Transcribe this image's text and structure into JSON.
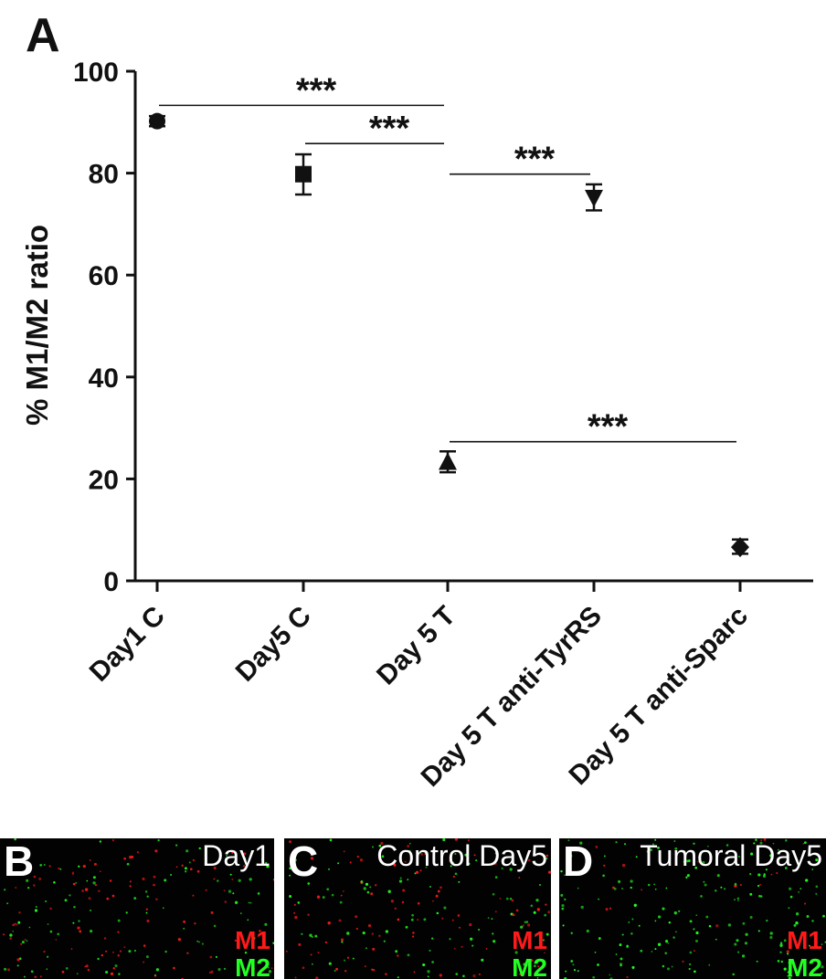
{
  "panel_label": "A",
  "chart_data": {
    "type": "scatter",
    "categories": [
      "Day1 C",
      "Day5 C",
      "Day 5 T",
      "Day 5 T anti-TyrRS",
      "Day 5 T anti-Sparc"
    ],
    "markers": [
      "circle",
      "square",
      "triangle-up",
      "triangle-down",
      "diamond"
    ],
    "values": [
      90.2,
      79.8,
      23.2,
      75.3,
      6.6
    ],
    "error_low": [
      89.2,
      75.8,
      21.3,
      72.7,
      5.3
    ],
    "error_high": [
      91.2,
      83.7,
      25.4,
      77.8,
      8.1
    ],
    "xlabel": "",
    "ylabel": "% M1/M2 ratio",
    "ylim": [
      0,
      100
    ],
    "yticks": [
      0,
      20,
      40,
      60,
      80,
      100
    ],
    "grid": false,
    "significance": [
      {
        "from": 0,
        "to": 2,
        "y": 93.3,
        "label": "***"
      },
      {
        "from": 1,
        "to": 2,
        "y": 85.8,
        "label": "***"
      },
      {
        "from": 2,
        "to": 3,
        "y": 79.8,
        "label": "***"
      },
      {
        "from": 2,
        "to": 4,
        "y": 27.3,
        "label": "***"
      }
    ]
  },
  "image_panels": [
    {
      "letter": "B",
      "title": "Day1",
      "m1_label": "M1",
      "m2_label": "M2",
      "m1_fraction": 0.5,
      "m2_fraction": 0.5
    },
    {
      "letter": "C",
      "title": "Control Day5",
      "m1_label": "M1",
      "m2_label": "M2",
      "m1_fraction": 0.45,
      "m2_fraction": 0.55
    },
    {
      "letter": "D",
      "title": "Tumoral Day5",
      "m1_label": "M1",
      "m2_label": "M2",
      "m1_fraction": 0.12,
      "m2_fraction": 0.88
    }
  ],
  "colors": {
    "m1": "#ff1a1a",
    "m2": "#22ff22",
    "marker": "#111111",
    "panel_bg": "#020202"
  }
}
